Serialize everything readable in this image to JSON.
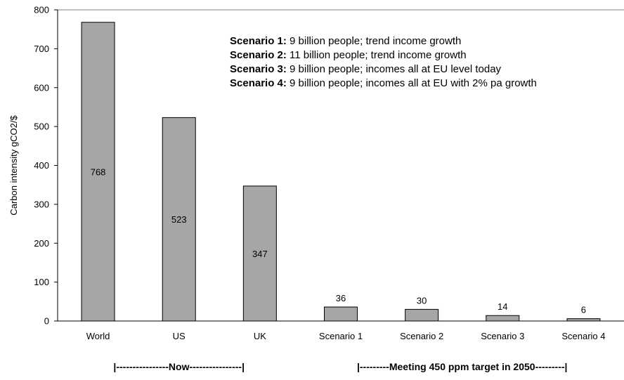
{
  "chart_data": {
    "type": "bar",
    "ylabel": "Carbon intensity gCO2/$",
    "ylim": [
      0,
      800
    ],
    "yticks": [
      0,
      100,
      200,
      300,
      400,
      500,
      600,
      700,
      800
    ],
    "categories": [
      "World",
      "US",
      "UK",
      "Scenario 1",
      "Scenario 2",
      "Scenario 3",
      "Scenario 4"
    ],
    "values": [
      768,
      523,
      347,
      36,
      30,
      14,
      6
    ],
    "data_labels": [
      "768",
      "523",
      "347",
      "36",
      "30",
      "14",
      "6"
    ],
    "bar_color": "#a6a6a6",
    "grid": false,
    "annotations": [
      {
        "bold": "Scenario 1:",
        "text": " 9 billion people; trend income growth"
      },
      {
        "bold": "Scenario 2:",
        "text": " 11 billion people; trend income growth"
      },
      {
        "bold": "Scenario 3:",
        "text": " 9 billion people; incomes all at EU level today"
      },
      {
        "bold": "Scenario 4:",
        "text": " 9 billion people; incomes all at EU with 2% pa growth"
      }
    ],
    "groups": [
      {
        "label": "|----------------Now----------------|",
        "span": [
          0,
          2
        ]
      },
      {
        "label": "|---------Meeting 450 ppm target in 2050---------|",
        "span": [
          3,
          6
        ]
      }
    ]
  }
}
